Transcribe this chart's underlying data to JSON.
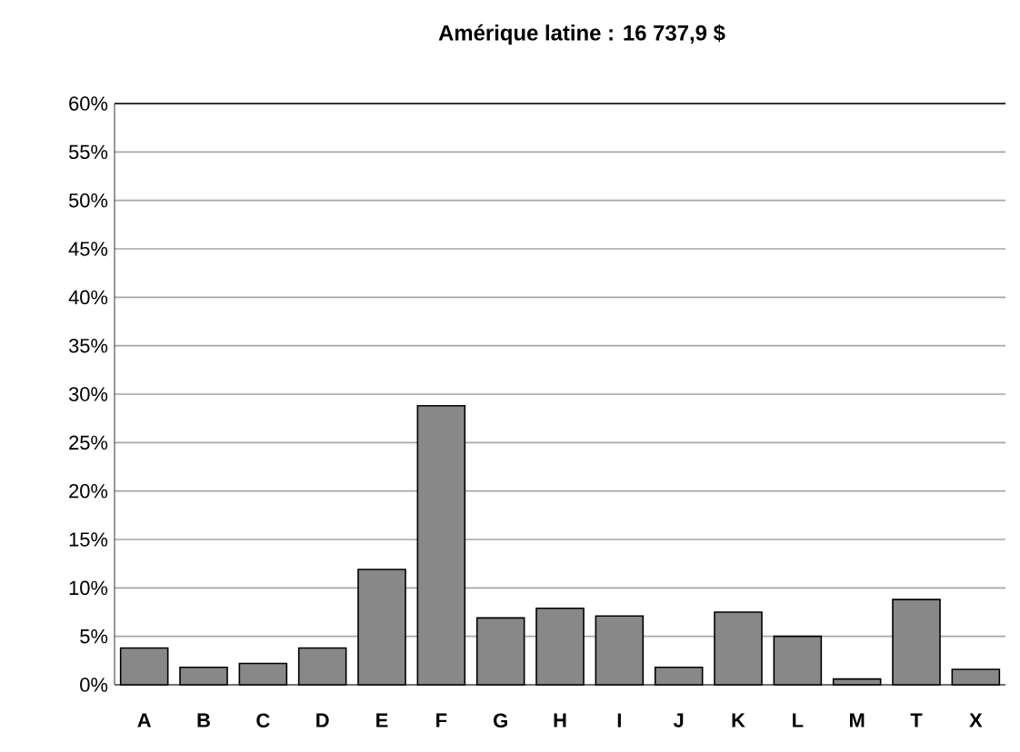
{
  "chart_data": {
    "type": "bar",
    "title": "Amérique latine : 16 737,9 $",
    "categories": [
      "A",
      "B",
      "C",
      "D",
      "E",
      "F",
      "G",
      "H",
      "I",
      "J",
      "K",
      "L",
      "M",
      "T",
      "X"
    ],
    "values": [
      3.8,
      1.8,
      2.2,
      3.8,
      11.9,
      28.8,
      6.9,
      7.9,
      7.1,
      1.8,
      7.5,
      5.0,
      0.6,
      8.8,
      1.6
    ],
    "color": "#888888",
    "ylim": [
      0,
      60
    ],
    "yticks": [
      {
        "value": 0,
        "label": "0%"
      },
      {
        "value": 5,
        "label": "5%"
      },
      {
        "value": 10,
        "label": "10%"
      },
      {
        "value": 15,
        "label": "15%"
      },
      {
        "value": 20,
        "label": "20%"
      },
      {
        "value": 25,
        "label": "25%"
      },
      {
        "value": 30,
        "label": "30%"
      },
      {
        "value": 35,
        "label": "35%"
      },
      {
        "value": 40,
        "label": "40%"
      },
      {
        "value": 45,
        "label": "45%"
      },
      {
        "value": 50,
        "label": "50%"
      },
      {
        "value": 55,
        "label": "55%"
      },
      {
        "value": 60,
        "label": "60%"
      }
    ],
    "grid": "y"
  }
}
